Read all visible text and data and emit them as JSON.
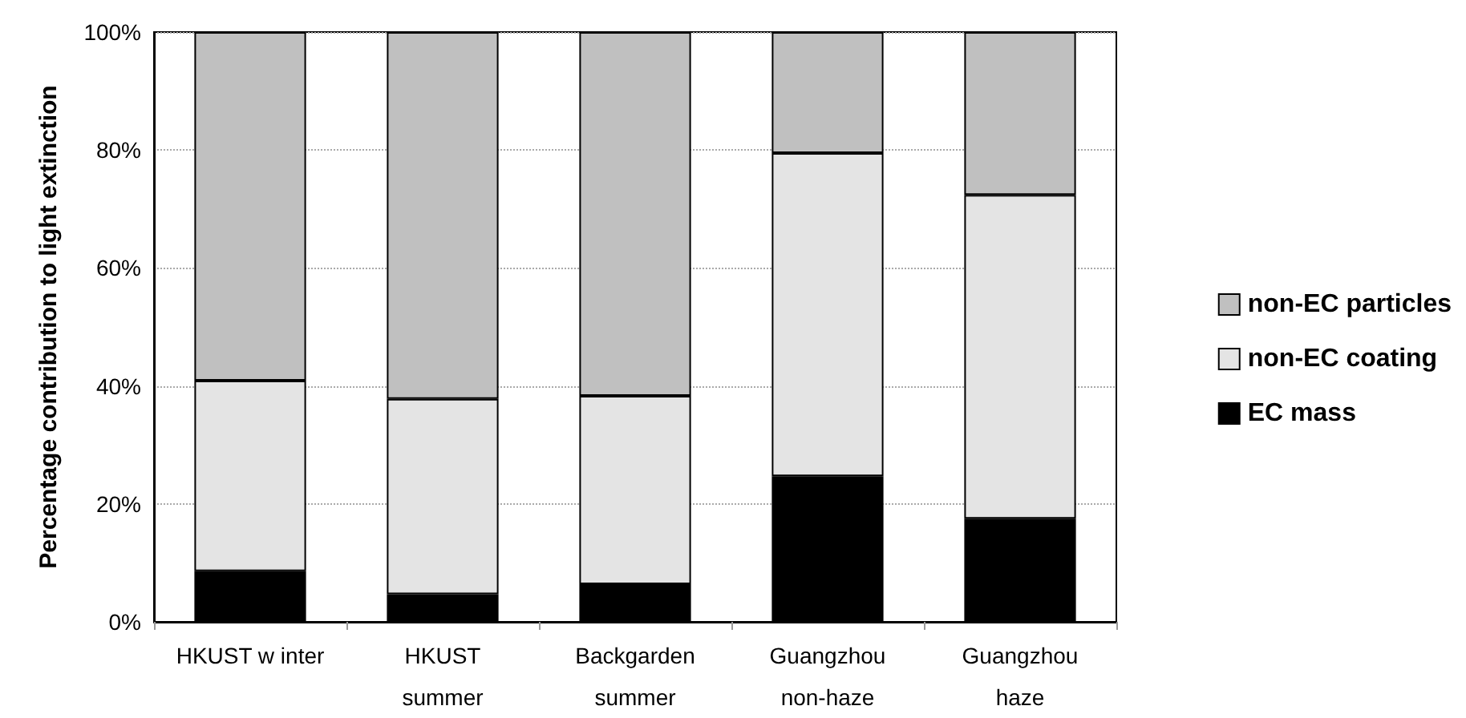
{
  "chart_data": {
    "type": "bar",
    "stacked": true,
    "ylabel": "Percentage contribution to light extinction",
    "categories": [
      "HKUST w inter",
      "HKUST\nsummer",
      "Backgarden\nsummer",
      "Guangzhou\nnon-haze",
      "Guangzhou\nhaze"
    ],
    "series": [
      {
        "name": "EC mass",
        "color": "#000000",
        "values": [
          8.6,
          4.7,
          6.4,
          24.7,
          17.5
        ]
      },
      {
        "name": "non-EC coating",
        "color": "#e4e4e4",
        "values": [
          32.3,
          33.1,
          31.9,
          54.8,
          54.9
        ]
      },
      {
        "name": "non-EC particles",
        "color": "#c0c0c0",
        "values": [
          59.1,
          62.2,
          61.7,
          20.5,
          27.6
        ]
      }
    ],
    "ylim": [
      0,
      100
    ],
    "yticks": [
      {
        "value": 0,
        "label": "0%"
      },
      {
        "value": 20,
        "label": "20%"
      },
      {
        "value": 40,
        "label": "40%"
      },
      {
        "value": 60,
        "label": "60%"
      },
      {
        "value": 80,
        "label": "80%"
      },
      {
        "value": 100,
        "label": "100%"
      }
    ],
    "grid": "y",
    "legend": "right"
  }
}
